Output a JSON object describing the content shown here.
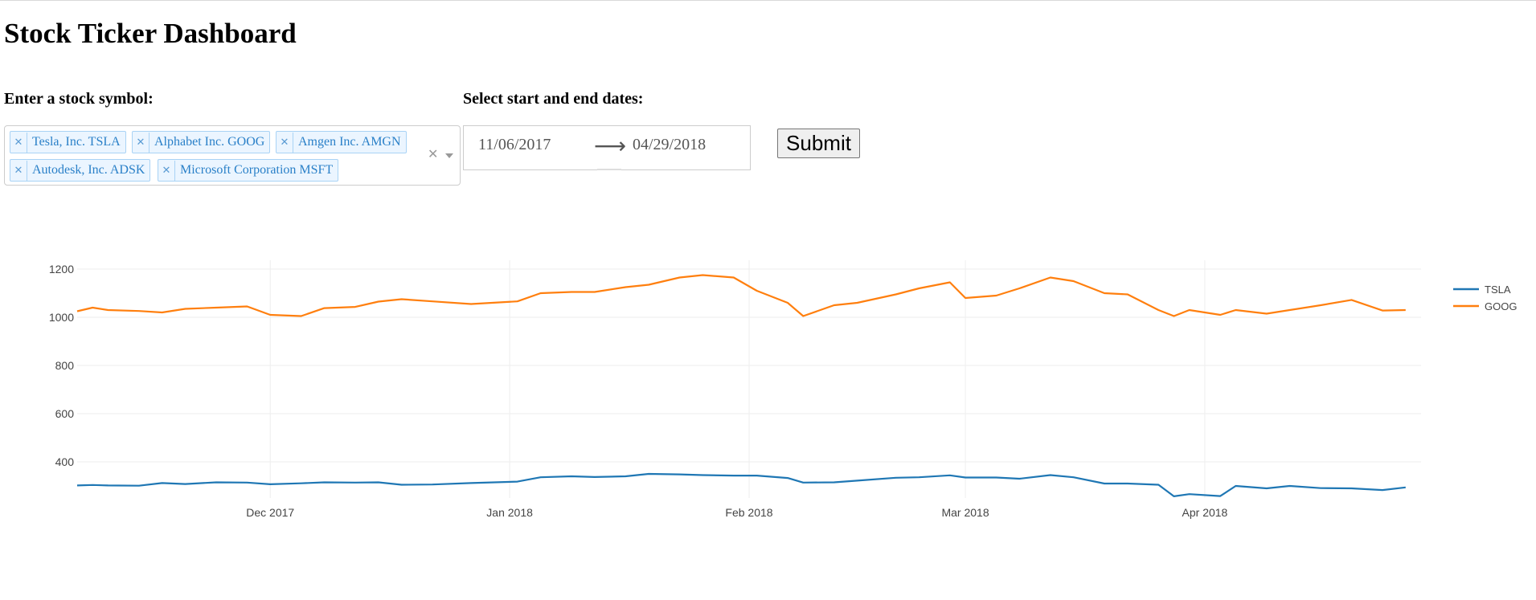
{
  "page_title": "Stock Ticker Dashboard",
  "symbol_label": "Enter a stock symbol:",
  "dates_label": "Select start and end dates:",
  "selected_symbols": [
    "Tesla, Inc. TSLA",
    "Alphabet Inc. GOOG",
    "Amgen Inc. AMGN",
    "Autodesk, Inc. ADSK",
    "Microsoft Corporation MSFT"
  ],
  "start_date": "11/06/2017",
  "end_date": "04/29/2018",
  "submit_label": "Submit",
  "icons": {
    "remove": "close-icon",
    "clear": "clear-icon",
    "dropdown": "chevron-down-icon",
    "range": "arrow-right-icon"
  },
  "chart_data": {
    "type": "line",
    "title": "",
    "xlabel": "",
    "ylabel": "",
    "x_range": [
      "2017-11-06",
      "2018-04-29"
    ],
    "ylim": [
      250,
      1250
    ],
    "y_ticks": [
      400,
      600,
      800,
      1000,
      1200
    ],
    "x_ticks": [
      {
        "date": "2017-12-01",
        "label": "Dec 2017"
      },
      {
        "date": "2018-01-01",
        "label": "Jan 2018"
      },
      {
        "date": "2018-02-01",
        "label": "Feb 2018"
      },
      {
        "date": "2018-03-01",
        "label": "Mar 2018"
      },
      {
        "date": "2018-04-01",
        "label": "Apr 2018"
      }
    ],
    "grid": true,
    "legend": "top-right",
    "series": [
      {
        "name": "TSLA",
        "color": "#1f77b4",
        "points": [
          [
            "2017-11-06",
            302
          ],
          [
            "2017-11-08",
            304
          ],
          [
            "2017-11-10",
            302
          ],
          [
            "2017-11-14",
            301
          ],
          [
            "2017-11-17",
            312
          ],
          [
            "2017-11-20",
            308
          ],
          [
            "2017-11-24",
            315
          ],
          [
            "2017-11-28",
            314
          ],
          [
            "2017-12-01",
            307
          ],
          [
            "2017-12-05",
            311
          ],
          [
            "2017-12-08",
            315
          ],
          [
            "2017-12-12",
            314
          ],
          [
            "2017-12-15",
            315
          ],
          [
            "2017-12-18",
            305
          ],
          [
            "2017-12-22",
            306
          ],
          [
            "2017-12-27",
            312
          ],
          [
            "2018-01-02",
            318
          ],
          [
            "2018-01-05",
            336
          ],
          [
            "2018-01-09",
            340
          ],
          [
            "2018-01-12",
            337
          ],
          [
            "2018-01-16",
            340
          ],
          [
            "2018-01-19",
            350
          ],
          [
            "2018-01-23",
            348
          ],
          [
            "2018-01-26",
            345
          ],
          [
            "2018-01-30",
            343
          ],
          [
            "2018-02-02",
            343
          ],
          [
            "2018-02-06",
            333
          ],
          [
            "2018-02-08",
            314
          ],
          [
            "2018-02-12",
            315
          ],
          [
            "2018-02-15",
            322
          ],
          [
            "2018-02-20",
            334
          ],
          [
            "2018-02-23",
            336
          ],
          [
            "2018-02-27",
            344
          ],
          [
            "2018-03-01",
            335
          ],
          [
            "2018-03-05",
            335
          ],
          [
            "2018-03-08",
            330
          ],
          [
            "2018-03-12",
            345
          ],
          [
            "2018-03-15",
            336
          ],
          [
            "2018-03-19",
            310
          ],
          [
            "2018-03-22",
            310
          ],
          [
            "2018-03-26",
            305
          ],
          [
            "2018-03-28",
            257
          ],
          [
            "2018-03-30",
            266
          ],
          [
            "2018-04-03",
            258
          ],
          [
            "2018-04-05",
            300
          ],
          [
            "2018-04-09",
            290
          ],
          [
            "2018-04-12",
            300
          ],
          [
            "2018-04-16",
            291
          ],
          [
            "2018-04-20",
            290
          ],
          [
            "2018-04-24",
            283
          ],
          [
            "2018-04-27",
            294
          ]
        ]
      },
      {
        "name": "GOOG",
        "color": "#ff7f0e",
        "points": [
          [
            "2017-11-06",
            1025
          ],
          [
            "2017-11-08",
            1040
          ],
          [
            "2017-11-10",
            1030
          ],
          [
            "2017-11-14",
            1026
          ],
          [
            "2017-11-17",
            1020
          ],
          [
            "2017-11-20",
            1035
          ],
          [
            "2017-11-24",
            1040
          ],
          [
            "2017-11-28",
            1045
          ],
          [
            "2017-12-01",
            1010
          ],
          [
            "2017-12-05",
            1005
          ],
          [
            "2017-12-08",
            1038
          ],
          [
            "2017-12-12",
            1043
          ],
          [
            "2017-12-15",
            1065
          ],
          [
            "2017-12-18",
            1075
          ],
          [
            "2017-12-22",
            1066
          ],
          [
            "2017-12-27",
            1055
          ],
          [
            "2018-01-02",
            1066
          ],
          [
            "2018-01-05",
            1100
          ],
          [
            "2018-01-09",
            1105
          ],
          [
            "2018-01-12",
            1105
          ],
          [
            "2018-01-16",
            1125
          ],
          [
            "2018-01-19",
            1135
          ],
          [
            "2018-01-23",
            1165
          ],
          [
            "2018-01-26",
            1175
          ],
          [
            "2018-01-30",
            1165
          ],
          [
            "2018-02-02",
            1110
          ],
          [
            "2018-02-06",
            1060
          ],
          [
            "2018-02-08",
            1005
          ],
          [
            "2018-02-12",
            1050
          ],
          [
            "2018-02-15",
            1060
          ],
          [
            "2018-02-20",
            1095
          ],
          [
            "2018-02-23",
            1120
          ],
          [
            "2018-02-27",
            1145
          ],
          [
            "2018-03-01",
            1080
          ],
          [
            "2018-03-05",
            1090
          ],
          [
            "2018-03-08",
            1120
          ],
          [
            "2018-03-12",
            1165
          ],
          [
            "2018-03-15",
            1150
          ],
          [
            "2018-03-19",
            1100
          ],
          [
            "2018-03-22",
            1095
          ],
          [
            "2018-03-26",
            1030
          ],
          [
            "2018-03-28",
            1005
          ],
          [
            "2018-03-30",
            1030
          ],
          [
            "2018-04-03",
            1010
          ],
          [
            "2018-04-05",
            1030
          ],
          [
            "2018-04-09",
            1015
          ],
          [
            "2018-04-12",
            1030
          ],
          [
            "2018-04-16",
            1050
          ],
          [
            "2018-04-20",
            1072
          ],
          [
            "2018-04-24",
            1028
          ],
          [
            "2018-04-27",
            1030
          ]
        ]
      }
    ]
  }
}
